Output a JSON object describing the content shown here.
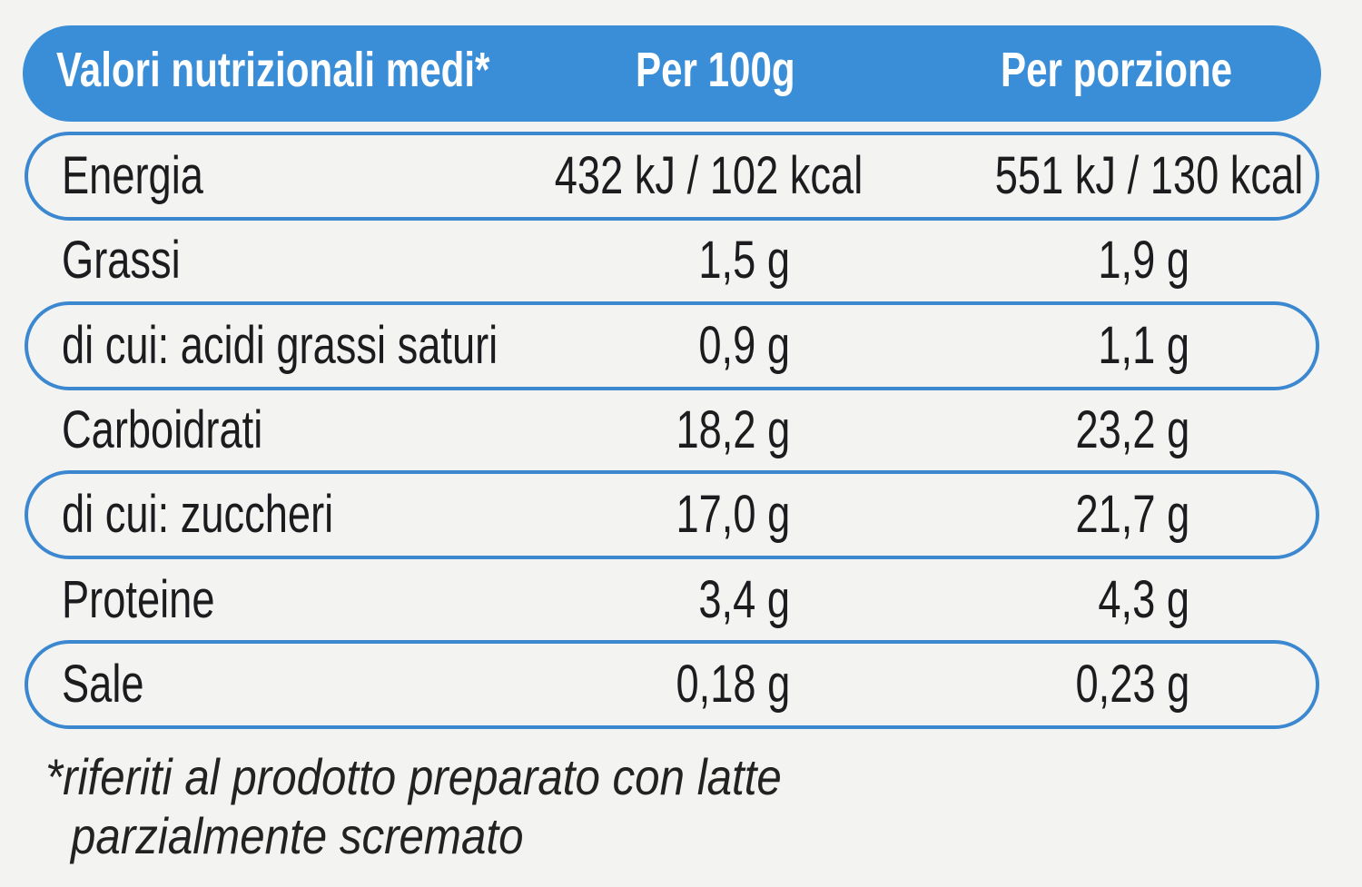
{
  "table": {
    "header": [
      "Valori nutrizionali medi*",
      "Per 100g",
      "Per porzione"
    ],
    "rows": [
      [
        "Energia",
        "432 kJ / 102 kcal",
        "551 kJ / 130 kcal"
      ],
      [
        "Grassi",
        "1,5 g",
        "1,9 g"
      ],
      [
        "di cui: acidi grassi saturi",
        "0,9 g",
        "1,1 g"
      ],
      [
        "Carboidrati",
        "18,2 g",
        "23,2 g"
      ],
      [
        "di cui: zuccheri",
        "17,0 g",
        "21,7 g"
      ],
      [
        "Proteine",
        "3,4 g",
        "4,3 g"
      ],
      [
        "Sale",
        "0,18 g",
        "0,23 g"
      ]
    ]
  },
  "footnote": [
    "*riferiti al prodotto preparato con latte",
    "parzialmente scremato"
  ]
}
